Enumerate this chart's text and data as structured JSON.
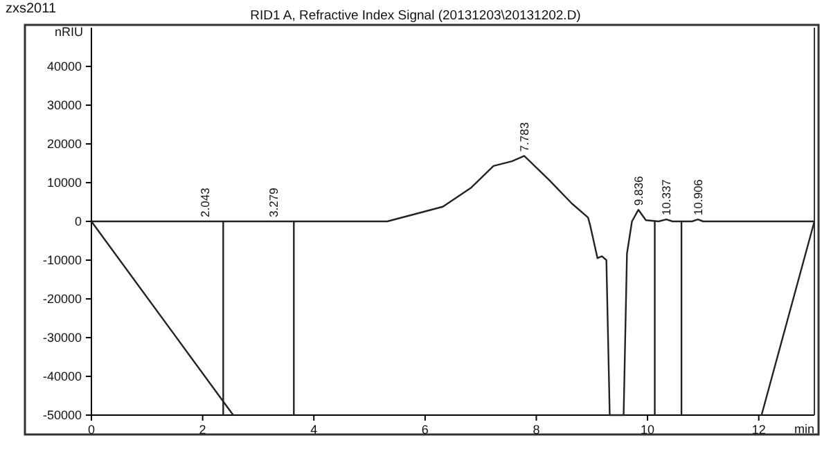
{
  "chart_data": {
    "type": "line",
    "title": "RID1 A, Refractive Index Signal (20131203\\20131202.D)",
    "xlabel": "min",
    "ylabel": "nRIU",
    "xlim": [
      0,
      13
    ],
    "xticks": [
      0,
      2,
      4,
      6,
      8,
      10,
      12
    ],
    "ylim": [
      -50000,
      50000
    ],
    "yticks": [
      -50000,
      -40000,
      -30000,
      -20000,
      -10000,
      0,
      10000,
      20000,
      30000,
      40000
    ],
    "grid": false,
    "line_style": "solid",
    "marker": "none",
    "series": [
      {
        "color": "#222222",
        "x": [
          0,
          5.32,
          6.32,
          6.82,
          7.23,
          7.56,
          7.783,
          8.23,
          8.64,
          8.93,
          8.97,
          9.1,
          9.18,
          9.26,
          9.32,
          9.57,
          9.63,
          9.72,
          9.836,
          9.97,
          10.2,
          10.337,
          10.45,
          10.8,
          10.906,
          11.0,
          13
        ],
        "values": [
          0,
          0,
          3800,
          8600,
          14300,
          15500,
          16900,
          10700,
          4600,
          1000,
          -1100,
          -9500,
          -9000,
          -10000,
          -50000,
          -50000,
          -8300,
          0,
          3000,
          300,
          0,
          500,
          0,
          0,
          500,
          0,
          0
        ]
      },
      {
        "color": "#222222",
        "x": [
          0,
          2.55
        ],
        "values": [
          0,
          -50000
        ]
      },
      {
        "color": "#222222",
        "x": [
          2.37,
          2.37
        ],
        "values": [
          0,
          -50000
        ]
      },
      {
        "color": "#222222",
        "x": [
          3.64,
          3.64
        ],
        "values": [
          0,
          -50000
        ]
      },
      {
        "color": "#222222",
        "x": [
          10.13,
          10.13
        ],
        "values": [
          0,
          -50000
        ]
      },
      {
        "color": "#222222",
        "x": [
          10.61,
          10.61
        ],
        "values": [
          0,
          -50000
        ]
      },
      {
        "color": "#222222",
        "x": [
          12.05,
          13
        ],
        "values": [
          -50000,
          0
        ]
      }
    ],
    "annotations": [
      "zxs2011",
      {
        "text": "2.043",
        "x": 2.043,
        "y": 0
      },
      {
        "text": "3.279",
        "x": 3.279,
        "y": 0
      },
      {
        "text": "7.783",
        "x": 7.783,
        "y": 16900
      },
      {
        "text": "9.836",
        "x": 9.836,
        "y": 3000
      },
      {
        "text": "10.337",
        "x": 10.337,
        "y": 500
      },
      {
        "text": "10.906",
        "x": 10.906,
        "y": 500
      }
    ]
  }
}
